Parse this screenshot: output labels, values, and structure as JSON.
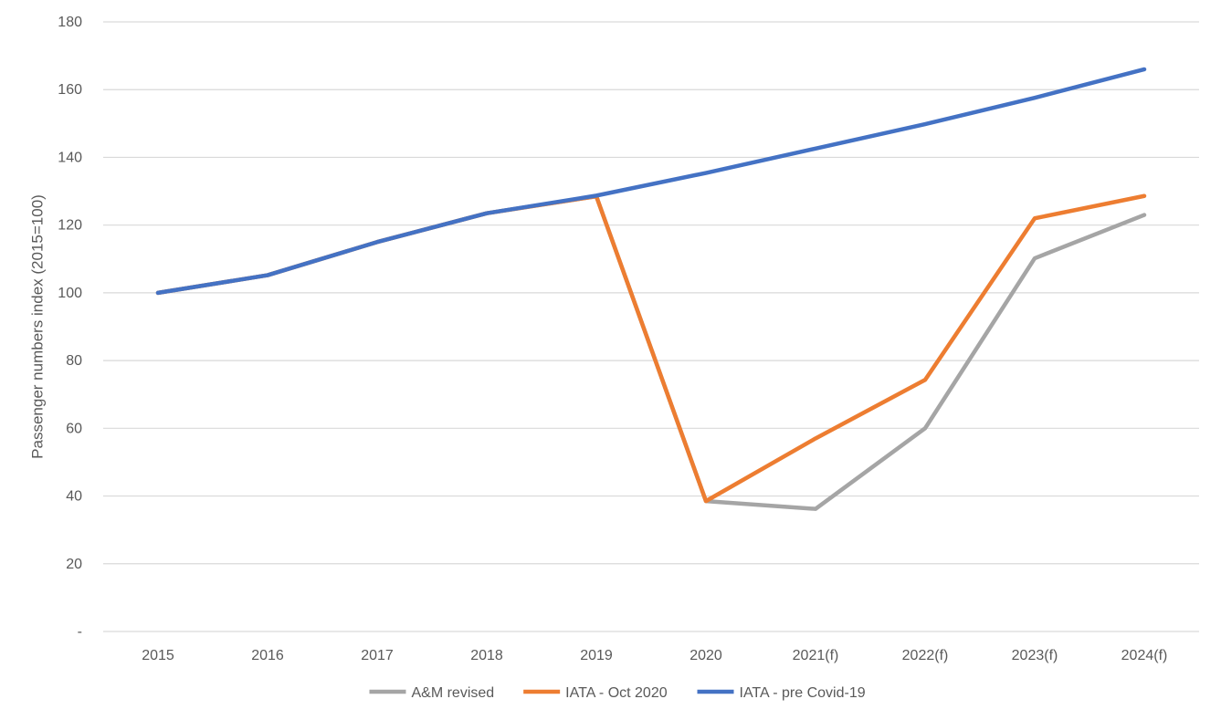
{
  "chart_data": {
    "type": "line",
    "title": "",
    "xlabel": "",
    "ylabel": "Passenger numbers index  (2015=100)",
    "categories": [
      "2015",
      "2016",
      "2017",
      "2018",
      "2019",
      "2020",
      "2021(f)",
      "2022(f)",
      "2023(f)",
      "2024(f)"
    ],
    "y_tick_labels": [
      "-",
      "20",
      "40",
      "60",
      "80",
      "100",
      "120",
      "140",
      "160",
      "180"
    ],
    "ylim": [
      0,
      180
    ],
    "grid": true,
    "legend_position": "bottom",
    "series": [
      {
        "name": "A&M revised",
        "color": "#A5A5A5",
        "values": [
          100,
          105.2,
          115,
          123.5,
          128.5,
          38.5,
          36.2,
          60,
          110.2,
          123
        ]
      },
      {
        "name": "IATA - Oct 2020",
        "color": "#ED7D31",
        "values": [
          100,
          105.2,
          115,
          123.5,
          128.5,
          38.5,
          57,
          74.3,
          122,
          128.6
        ]
      },
      {
        "name": "IATA - pre Covid-19",
        "color": "#4472C4",
        "values": [
          100,
          105.2,
          115,
          123.5,
          128.7,
          135.4,
          142.6,
          149.8,
          157.6,
          166
        ]
      }
    ]
  }
}
